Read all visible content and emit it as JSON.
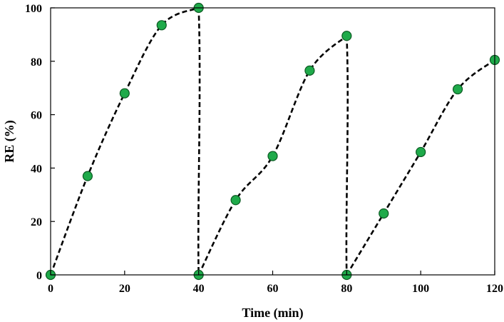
{
  "chart_data": {
    "type": "scatter",
    "title": "",
    "xlabel": "Time (min)",
    "ylabel": "RE (%)",
    "xlim": [
      0,
      120
    ],
    "ylim": [
      0,
      100
    ],
    "xticks": [
      0,
      20,
      40,
      60,
      80,
      100,
      120
    ],
    "yticks": [
      0,
      20,
      40,
      60,
      80,
      100
    ],
    "grid": false,
    "legend": "none",
    "colors": {
      "marker_fill": "#1faa4a",
      "marker_edge": "#0b5a22",
      "line": "#000000"
    },
    "series": [
      {
        "line_style": "dashed-smooth",
        "segments": [
          {
            "x": [
              0,
              10,
              20,
              30,
              40
            ],
            "y": [
              0,
              37,
              68,
              93.5,
              100
            ]
          },
          {
            "x": [
              40,
              50,
              60,
              70,
              80
            ],
            "y": [
              0,
              28,
              44.5,
              76.5,
              89.5
            ]
          },
          {
            "x": [
              80,
              90,
              100,
              110,
              120
            ],
            "y": [
              0,
              23,
              46,
              69.5,
              80.5
            ]
          }
        ],
        "drop_lines": [
          {
            "from": [
              40,
              100
            ],
            "to": [
              40,
              0
            ]
          },
          {
            "from": [
              80,
              89.5
            ],
            "to": [
              80,
              0
            ]
          }
        ]
      }
    ]
  }
}
